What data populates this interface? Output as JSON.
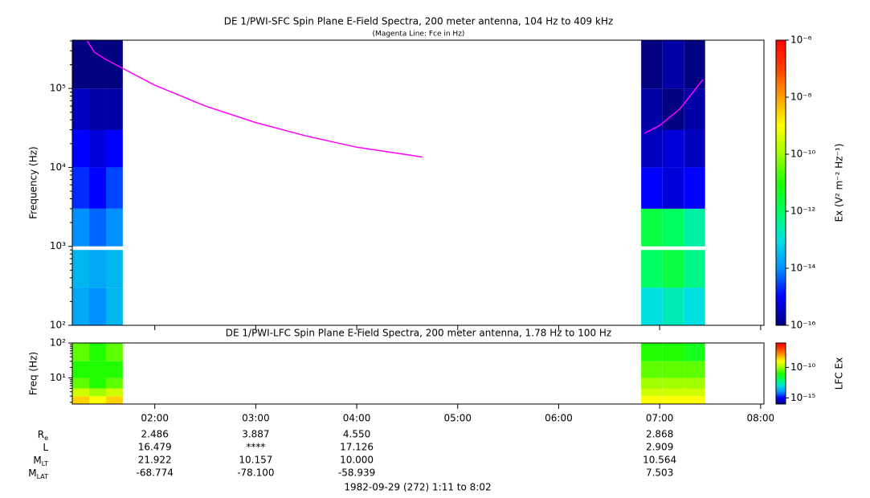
{
  "chart_data": [
    {
      "type": "heatmap",
      "title": "DE 1/PWI-SFC  Spin Plane E-Field Spectra, 200 meter antenna, 104 Hz to 409 kHz",
      "subtitle": "(Magenta Line: Fce in Hz)",
      "ylabel": "Frequency (Hz)",
      "log_y": true,
      "xlim": [
        1.183,
        8.033
      ],
      "ylim": [
        100,
        409000
      ],
      "yticks": [
        {
          "value": 100,
          "label": "10²"
        },
        {
          "value": 1000,
          "label": "10³"
        },
        {
          "value": 10000,
          "label": "10⁴"
        },
        {
          "value": 100000,
          "label": "10⁵"
        }
      ],
      "x_edges": [
        1.183,
        1.35,
        1.517,
        1.683,
        6.817,
        7.028,
        7.239,
        7.45
      ],
      "y_edges": [
        100,
        300,
        900,
        1000,
        3000,
        10000,
        30000,
        100000,
        409000
      ],
      "z": [
        [
          2e-14,
          1e-14,
          3e-14,
          null,
          1e-13,
          2e-13,
          1e-13
        ],
        [
          3e-14,
          2e-14,
          3e-14,
          null,
          1e-12,
          2e-12,
          5e-13
        ],
        [
          null,
          null,
          null,
          null,
          null,
          null,
          null
        ],
        [
          1e-14,
          5e-15,
          1e-14,
          null,
          2e-12,
          1e-12,
          3e-13
        ],
        [
          2e-15,
          1e-15,
          3e-15,
          null,
          1e-15,
          5e-16,
          1e-15
        ],
        [
          1e-15,
          5e-16,
          1e-15,
          null,
          3e-16,
          5e-16,
          3e-16
        ],
        [
          3e-16,
          2e-16,
          2e-16,
          null,
          2e-16,
          1e-16,
          2e-16
        ],
        [
          1e-16,
          1e-16,
          1e-16,
          null,
          1e-16,
          2e-16,
          1e-16
        ]
      ],
      "zlim": [
        1e-16,
        1e-06
      ],
      "zticks": [
        {
          "value": 1e-16,
          "label": "10⁻¹⁶"
        },
        {
          "value": 1e-14,
          "label": "10⁻¹⁴"
        },
        {
          "value": 1e-12,
          "label": "10⁻¹²"
        },
        {
          "value": 1e-10,
          "label": "10⁻¹⁰"
        },
        {
          "value": 1e-08,
          "label": "10⁻⁸"
        },
        {
          "value": 1e-06,
          "label": "10⁻⁶"
        }
      ],
      "zlabel": "Ex (V² m⁻² Hz⁻¹)",
      "lines": [
        {
          "color": "#ff00ff",
          "x": [
            1.33,
            1.4,
            1.5,
            1.68,
            2.0,
            2.5,
            3.0,
            3.5,
            4.0,
            4.5,
            4.65,
            null,
            6.85,
            7.0,
            7.2,
            7.43
          ],
          "y": [
            400000,
            290000,
            240000,
            180000,
            110000,
            60000,
            37000,
            25000,
            18000,
            14500,
            13500,
            null,
            27000,
            34000,
            55000,
            130000
          ]
        }
      ]
    },
    {
      "type": "heatmap",
      "title": "DE 1/PWI-LFC  Spin Plane E-Field Spectra, 200 meter antenna, 1.78 Hz to 100 Hz",
      "ylabel": "Freq (Hz)",
      "log_y": true,
      "xlim": [
        1.183,
        8.033
      ],
      "xticks": [
        {
          "value": 2,
          "label": "02:00"
        },
        {
          "value": 3,
          "label": "03:00"
        },
        {
          "value": 4,
          "label": "04:00"
        },
        {
          "value": 5,
          "label": "05:00"
        },
        {
          "value": 6,
          "label": "06:00"
        },
        {
          "value": 7,
          "label": "07:00"
        },
        {
          "value": 8,
          "label": "08:00"
        }
      ],
      "ylim": [
        1.78,
        100
      ],
      "yticks": [
        {
          "value": 10,
          "label": "10¹"
        },
        {
          "value": 100,
          "label": "10²"
        }
      ],
      "x_edges": [
        1.183,
        1.35,
        1.517,
        1.683,
        6.817,
        7.028,
        7.239,
        7.45
      ],
      "y_edges": [
        1.78,
        3,
        5,
        10,
        30,
        100
      ],
      "z": [
        [
          3e-09,
          1e-09,
          3e-09,
          null,
          1e-09,
          1e-09,
          1e-09
        ],
        [
          3e-10,
          1e-10,
          3e-10,
          null,
          3e-10,
          3e-10,
          3e-10
        ],
        [
          3e-11,
          1e-11,
          3e-11,
          null,
          1e-10,
          1e-10,
          1e-10
        ],
        [
          1e-11,
          1e-11,
          1e-11,
          null,
          3e-11,
          3e-11,
          3e-11
        ],
        [
          3e-11,
          1e-11,
          3e-11,
          null,
          1e-11,
          1e-11,
          5e-12
        ]
      ],
      "zlim": [
        1e-16,
        1e-06
      ],
      "zticks": [
        {
          "value": 1e-15,
          "label": "10⁻¹⁵"
        },
        {
          "value": 1e-10,
          "label": "10⁻¹⁰"
        }
      ],
      "zlabel": "LFC Ex"
    }
  ],
  "ephemeris": {
    "x": [
      2,
      3,
      4,
      7
    ],
    "rows": [
      {
        "label": {
          "main": "R",
          "sub": "e"
        },
        "values": [
          "2.486",
          "3.887",
          "4.550",
          "2.868"
        ]
      },
      {
        "label": {
          "main": "L"
        },
        "values": [
          "16.479",
          "****",
          "17.126",
          "2.909"
        ]
      },
      {
        "label": {
          "main": "M",
          "sub": "LT"
        },
        "values": [
          "21.922",
          "10.157",
          "10.000",
          "10.564"
        ]
      },
      {
        "label": {
          "main": "M",
          "sub": "LAT"
        },
        "values": [
          "-68.774",
          "-78.100",
          "-58.939",
          "7.503"
        ]
      }
    ]
  },
  "footer": "1982-09-29 (272) 1:11 to 8:02"
}
